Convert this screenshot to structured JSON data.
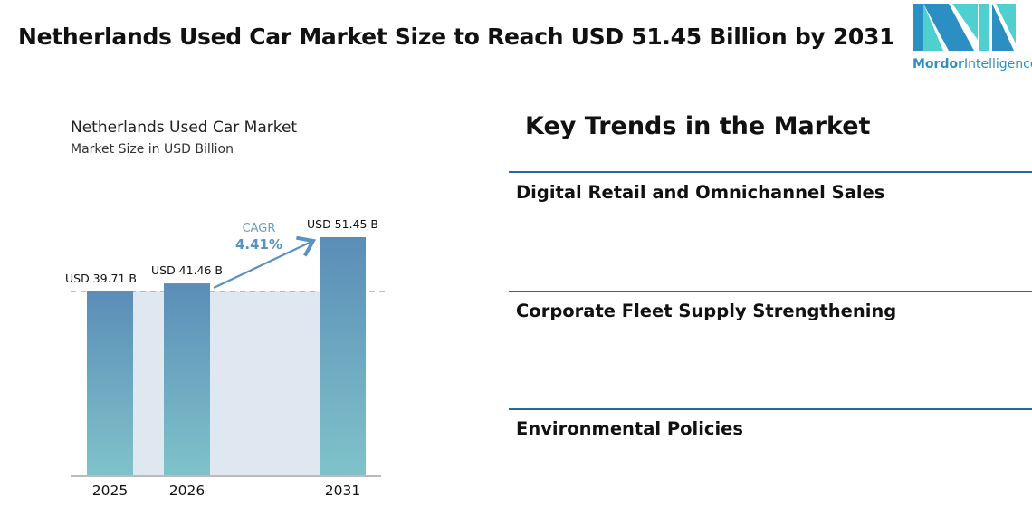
{
  "header": {
    "title": "Netherlands Used Car Market Size to Reach USD 51.45 Billion by 2031"
  },
  "logo": {
    "text_bold": "Mordor",
    "text_regular": "Intelligence"
  },
  "chart_data": {
    "type": "bar",
    "title": "Netherlands Used Car Market",
    "subtitle": "Market Size in USD Billion",
    "categories": [
      "2025",
      "2026",
      "2031"
    ],
    "values": [
      39.71,
      41.46,
      51.45
    ],
    "data_labels": [
      "USD 39.71 B",
      "USD 41.46 B",
      "USD 51.45 B"
    ],
    "annotation": {
      "label": "CAGR",
      "value": "4.41%"
    },
    "ylim": [
      0,
      55
    ],
    "grid": false,
    "colors": {
      "bar_top": "#5b8db8",
      "bar_bottom": "#7fc3c9",
      "band": "#dfe8f0",
      "accent": "#5a93bf"
    }
  },
  "trends": {
    "title": "Key Trends in the Market",
    "items": [
      "Digital Retail and Omnichannel Sales",
      "Corporate Fleet Supply Strengthening",
      "Environmental Policies"
    ]
  }
}
